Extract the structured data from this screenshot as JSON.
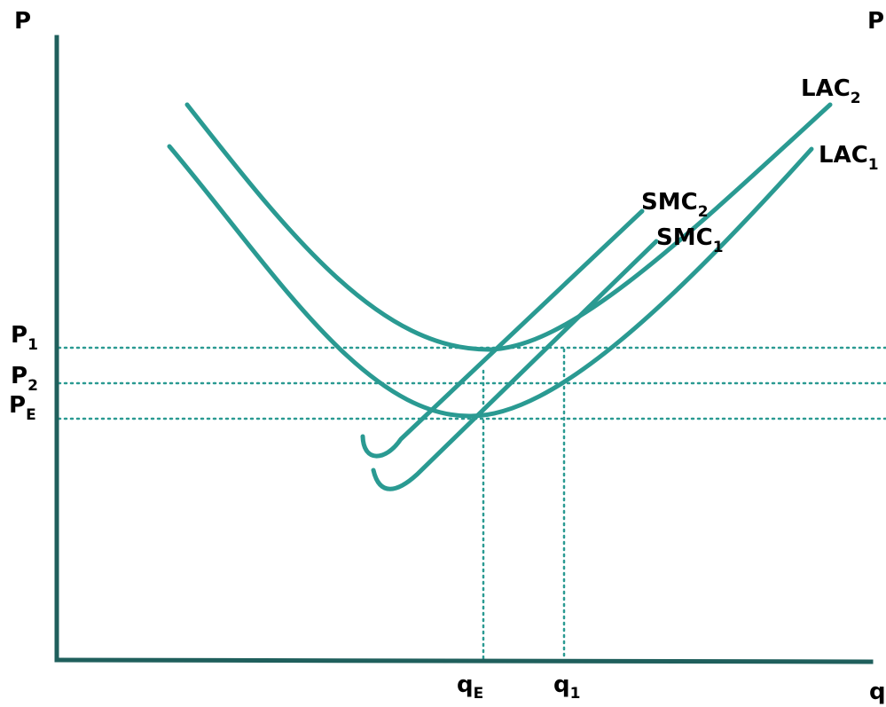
{
  "chart_data": {
    "type": "line",
    "title": "",
    "axes": {
      "y_label": "P",
      "y_label_right": "P",
      "x_label": "q"
    },
    "price_levels": [
      {
        "name": "P1",
        "main": "P",
        "sub": "1"
      },
      {
        "name": "P2",
        "main": "P",
        "sub": "2"
      },
      {
        "name": "PE",
        "main": "P",
        "sub": "E"
      }
    ],
    "quantity_levels": [
      {
        "name": "qE",
        "main": "q",
        "sub": "E"
      },
      {
        "name": "q1",
        "main": "q",
        "sub": "1"
      }
    ],
    "curves": [
      {
        "name": "LAC2",
        "main": "LAC",
        "sub": "2"
      },
      {
        "name": "LAC1",
        "main": "LAC",
        "sub": "1"
      },
      {
        "name": "SMC2",
        "main": "SMC",
        "sub": "2"
      },
      {
        "name": "SMC1",
        "main": "SMC",
        "sub": "1"
      }
    ],
    "colors": {
      "curve": "#2a9a92",
      "axis": "#1f5f5c"
    }
  }
}
